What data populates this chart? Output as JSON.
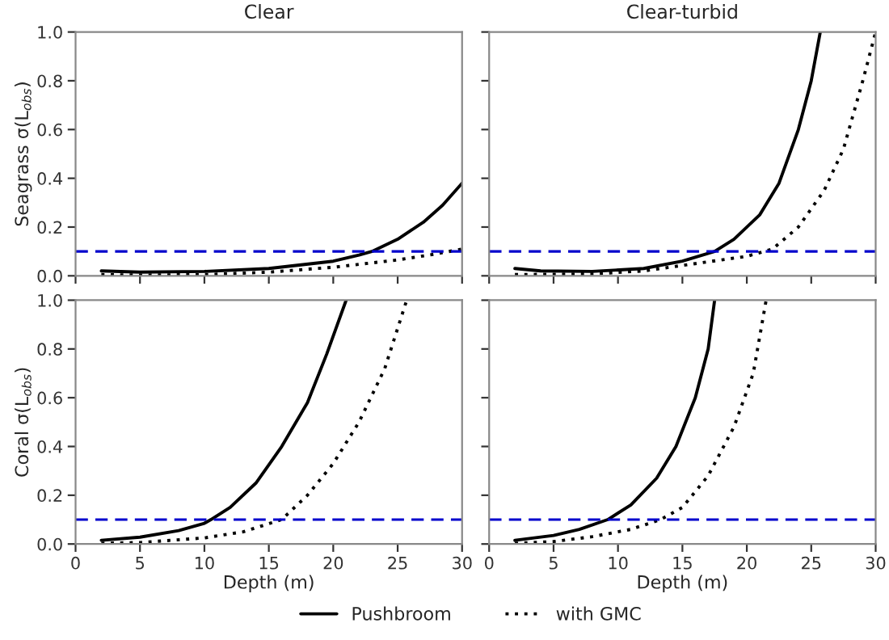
{
  "chart_data": [
    {
      "type": "line",
      "title": "Clear",
      "ylabel": "Seagrass σ(L$_{obs}$)",
      "xlim": [
        0,
        30
      ],
      "ylim": [
        0,
        1.0
      ],
      "xticks": [
        {
          "value": 0,
          "label": null
        },
        {
          "value": 5,
          "label": null
        },
        {
          "value": 10,
          "label": null
        },
        {
          "value": 15,
          "label": null
        },
        {
          "value": 20,
          "label": null
        },
        {
          "value": 25,
          "label": null
        },
        {
          "value": 30,
          "label": null
        }
      ],
      "yticks": [
        {
          "value": 0,
          "label": "0.0"
        },
        0.2,
        0.4,
        0.6,
        0.8,
        {
          "value": 1,
          "label": "1.0"
        }
      ],
      "tick_labels": "y",
      "grid": false,
      "legend": "bottom",
      "ref_lines": [
        {
          "axis": "y",
          "value": 0.1,
          "color": "#0000cc",
          "line_style": "dashed"
        }
      ],
      "series": [
        {
          "name": "Pushbroom",
          "color": "#000000",
          "line_style": "solid",
          "x": [
            2,
            5,
            10,
            15,
            20,
            22,
            23,
            25,
            27,
            28.5,
            30
          ],
          "values": [
            0.02,
            0.015,
            0.018,
            0.03,
            0.06,
            0.085,
            0.1,
            0.15,
            0.22,
            0.29,
            0.38
          ]
        },
        {
          "name": "with GMC",
          "color": "#000000",
          "line_style": "dotted",
          "x": [
            2,
            5,
            10,
            15,
            20,
            25,
            28,
            30
          ],
          "values": [
            0.005,
            0.003,
            0.005,
            0.015,
            0.035,
            0.065,
            0.09,
            0.11
          ]
        }
      ]
    },
    {
      "type": "line",
      "title": "Clear-turbid",
      "xlim": [
        0,
        30
      ],
      "ylim": [
        0,
        1.0
      ],
      "xticks": [
        {
          "value": 0,
          "label": null
        },
        {
          "value": 5,
          "label": null
        },
        {
          "value": 10,
          "label": null
        },
        {
          "value": 15,
          "label": null
        },
        {
          "value": 20,
          "label": null
        },
        {
          "value": 25,
          "label": null
        },
        {
          "value": 30,
          "label": null
        }
      ],
      "yticks": [
        {
          "value": 0.0,
          "label": null
        },
        {
          "value": 0.2,
          "label": null
        },
        {
          "value": 0.4,
          "label": null
        },
        {
          "value": 0.6,
          "label": null
        },
        {
          "value": 0.8,
          "label": null
        },
        {
          "value": 1.0,
          "label": null
        }
      ],
      "tick_labels": false,
      "grid": false,
      "ref_lines": [
        {
          "axis": "y",
          "value": 0.1,
          "color": "#0000cc",
          "line_style": "dashed"
        }
      ],
      "series": [
        {
          "name": "Pushbroom",
          "color": "#000000",
          "line_style": "solid",
          "x": [
            2,
            4,
            8,
            12,
            15,
            17.5,
            19,
            21,
            22.5,
            24,
            25,
            25.7
          ],
          "values": [
            0.03,
            0.02,
            0.018,
            0.03,
            0.06,
            0.1,
            0.15,
            0.25,
            0.38,
            0.6,
            0.8,
            1.0
          ]
        },
        {
          "name": "with GMC",
          "color": "#000000",
          "line_style": "dotted",
          "x": [
            2,
            8,
            12,
            16,
            20,
            22,
            24,
            26,
            27.5,
            29,
            30
          ],
          "values": [
            0.005,
            0.008,
            0.02,
            0.05,
            0.08,
            0.11,
            0.2,
            0.35,
            0.52,
            0.8,
            1.0
          ]
        }
      ]
    },
    {
      "type": "line",
      "xlabel": "Depth (m)",
      "ylabel": "Coral σ(L$_{obs}$)",
      "xlim": [
        0,
        30
      ],
      "ylim": [
        0,
        1.0
      ],
      "xticks": [
        0,
        5,
        10,
        15,
        20,
        25,
        30
      ],
      "yticks": [
        {
          "value": 0,
          "label": "0.0"
        },
        0.2,
        0.4,
        0.6,
        0.8,
        {
          "value": 1,
          "label": "1.0"
        }
      ],
      "grid": false,
      "ref_lines": [
        {
          "axis": "y",
          "value": 0.1,
          "color": "#0000cc",
          "line_style": "dashed"
        }
      ],
      "series": [
        {
          "name": "Pushbroom",
          "color": "#000000",
          "line_style": "solid",
          "x": [
            2,
            5,
            8,
            10,
            10.5,
            12,
            14,
            16,
            18,
            19.5,
            21
          ],
          "values": [
            0.015,
            0.028,
            0.055,
            0.085,
            0.1,
            0.15,
            0.25,
            0.4,
            0.58,
            0.78,
            1.0
          ]
        },
        {
          "name": "with GMC",
          "color": "#000000",
          "line_style": "dotted",
          "x": [
            2,
            5,
            10,
            13,
            16,
            18,
            20,
            22,
            24,
            25.7
          ],
          "values": [
            0.003,
            0.006,
            0.025,
            0.05,
            0.1,
            0.2,
            0.33,
            0.5,
            0.72,
            1.0
          ]
        }
      ]
    },
    {
      "type": "line",
      "xlabel": "Depth (m)",
      "xlim": [
        0,
        30
      ],
      "ylim": [
        0,
        1.0
      ],
      "xticks": [
        0,
        5,
        10,
        15,
        20,
        25,
        30
      ],
      "yticks": [
        {
          "value": 0.0,
          "label": null
        },
        {
          "value": 0.2,
          "label": null
        },
        {
          "value": 0.4,
          "label": null
        },
        {
          "value": 0.6,
          "label": null
        },
        {
          "value": 0.8,
          "label": null
        },
        {
          "value": 1.0,
          "label": null
        }
      ],
      "tick_labels": "x",
      "grid": false,
      "ref_lines": [
        {
          "axis": "y",
          "value": 0.1,
          "color": "#0000cc",
          "line_style": "dashed"
        }
      ],
      "series": [
        {
          "name": "Pushbroom",
          "color": "#000000",
          "line_style": "solid",
          "x": [
            2,
            5,
            7,
            9.2,
            11,
            13,
            14.5,
            16,
            17,
            17.5
          ],
          "values": [
            0.015,
            0.035,
            0.06,
            0.1,
            0.16,
            0.27,
            0.4,
            0.6,
            0.8,
            1.0
          ]
        },
        {
          "name": "with GMC",
          "color": "#000000",
          "line_style": "dotted",
          "x": [
            2,
            5,
            8,
            11,
            13.3,
            15,
            17,
            19,
            20.5,
            21.5
          ],
          "values": [
            0.003,
            0.01,
            0.03,
            0.06,
            0.1,
            0.15,
            0.28,
            0.48,
            0.7,
            1.0
          ]
        }
      ]
    }
  ]
}
